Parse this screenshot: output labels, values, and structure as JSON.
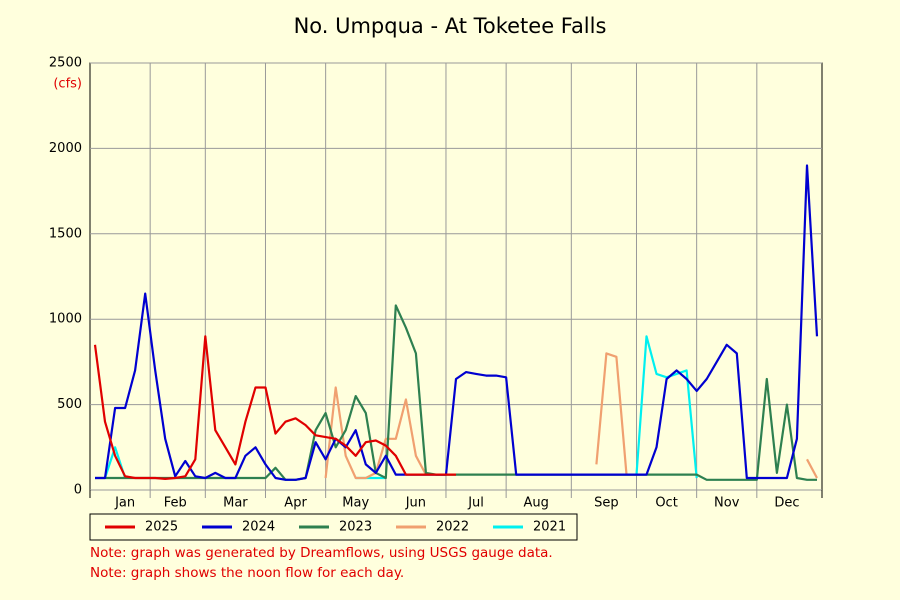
{
  "chart_data": {
    "type": "line",
    "title": "No. Umpqua - At Toketee Falls",
    "y_unit": "(cfs)",
    "notes": [
      "Note: graph was generated by Dreamflows, using USGS gauge data.",
      "Note: graph shows the noon flow for each day."
    ],
    "ylim": [
      0,
      2500
    ],
    "yticks": [
      0,
      500,
      1000,
      1500,
      2000,
      2500
    ],
    "grid": true,
    "categories": [
      null,
      null,
      null,
      "Jan",
      null,
      null,
      null,
      null,
      "Feb",
      null,
      null,
      null,
      null,
      null,
      "Mar",
      null,
      null,
      null,
      null,
      null,
      "Apr",
      null,
      null,
      null,
      null,
      null,
      "May",
      null,
      null,
      null,
      null,
      null,
      "Jun",
      null,
      null,
      null,
      null,
      null,
      "Jul",
      null,
      null,
      null,
      null,
      null,
      "Aug",
      null,
      null,
      null,
      null,
      null,
      null,
      "Sep",
      null,
      null,
      null,
      null,
      null,
      "Oct",
      null,
      null,
      null,
      null,
      null,
      "Nov",
      null,
      null,
      null,
      null,
      null,
      "Dec",
      null,
      null,
      null
    ],
    "series": [
      {
        "name": "2025",
        "color": "#e00000",
        "values": [
          850,
          400,
          200,
          80,
          70,
          70,
          70,
          65,
          70,
          80,
          180,
          900,
          350,
          250,
          150,
          400,
          600,
          600,
          330,
          400,
          420,
          380,
          320,
          310,
          300,
          260,
          200,
          280,
          290,
          260,
          200,
          90,
          90,
          90,
          90,
          90,
          90,
          null,
          null,
          null,
          null,
          null,
          null,
          null,
          null,
          null,
          null,
          null,
          null,
          null,
          null,
          null,
          null,
          null,
          null,
          null,
          null,
          null,
          null,
          null,
          null,
          null,
          null,
          null,
          null,
          null,
          null,
          null,
          null,
          null,
          null,
          null,
          null
        ]
      },
      {
        "name": "2024",
        "color": "#0000d0",
        "values": [
          70,
          70,
          480,
          480,
          700,
          1150,
          700,
          300,
          80,
          170,
          80,
          70,
          100,
          70,
          70,
          200,
          250,
          150,
          70,
          60,
          60,
          70,
          280,
          180,
          300,
          250,
          350,
          150,
          100,
          200,
          90,
          90,
          90,
          90,
          90,
          90,
          650,
          690,
          680,
          670,
          670,
          660,
          90,
          90,
          90,
          90,
          90,
          90,
          90,
          90,
          90,
          90,
          90,
          90,
          90,
          90,
          250,
          650,
          700,
          650,
          580,
          650,
          750,
          850,
          800,
          70,
          70,
          70,
          70,
          70,
          300,
          1900,
          900
        ]
      },
      {
        "name": "2023",
        "color": "#2e8050",
        "values": [
          70,
          70,
          70,
          70,
          70,
          70,
          70,
          70,
          70,
          70,
          70,
          70,
          70,
          70,
          70,
          70,
          70,
          70,
          130,
          60,
          60,
          70,
          350,
          450,
          250,
          350,
          550,
          450,
          100,
          70,
          1080,
          950,
          800,
          100,
          90,
          90,
          90,
          90,
          90,
          90,
          90,
          90,
          90,
          90,
          90,
          90,
          90,
          90,
          90,
          90,
          90,
          90,
          90,
          90,
          90,
          90,
          90,
          90,
          90,
          90,
          90,
          60,
          60,
          60,
          60,
          60,
          60,
          650,
          100,
          500,
          70,
          60,
          60
        ]
      },
      {
        "name": "2022",
        "color": "#f0a070",
        "values": [
          null,
          null,
          null,
          null,
          null,
          null,
          null,
          null,
          null,
          null,
          null,
          null,
          null,
          null,
          null,
          null,
          null,
          null,
          null,
          null,
          null,
          null,
          null,
          70,
          600,
          200,
          70,
          70,
          100,
          300,
          300,
          530,
          200,
          90,
          null,
          null,
          null,
          null,
          null,
          null,
          null,
          null,
          null,
          null,
          null,
          null,
          null,
          null,
          null,
          null,
          150,
          800,
          780,
          90,
          null,
          null,
          null,
          null,
          null,
          null,
          null,
          null,
          null,
          null,
          null,
          null,
          null,
          null,
          null,
          null,
          null,
          180,
          70
        ]
      },
      {
        "name": "2021",
        "color": "#00f0f0",
        "values": [
          null,
          70,
          250,
          70,
          null,
          null,
          null,
          null,
          null,
          null,
          null,
          null,
          null,
          null,
          null,
          null,
          null,
          null,
          null,
          null,
          null,
          null,
          null,
          null,
          null,
          null,
          70,
          70,
          70,
          70,
          null,
          null,
          null,
          null,
          null,
          null,
          null,
          null,
          null,
          null,
          null,
          null,
          null,
          null,
          null,
          null,
          null,
          null,
          null,
          null,
          null,
          null,
          null,
          null,
          90,
          900,
          680,
          660,
          680,
          700,
          70,
          null,
          null,
          null,
          null,
          null,
          null,
          null,
          null,
          null,
          null,
          null,
          null
        ]
      }
    ]
  }
}
